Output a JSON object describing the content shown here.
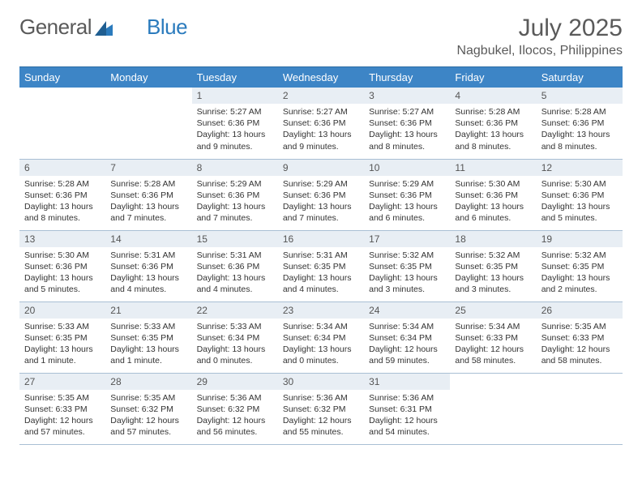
{
  "logo": {
    "text1": "General",
    "text2": "Blue"
  },
  "title": "July 2025",
  "location": "Nagbukel, Ilocos, Philippines",
  "colors": {
    "header_bg": "#3d85c6",
    "header_text": "#ffffff",
    "daynum_bg": "#e8eef4",
    "border": "#a9bfd4",
    "text": "#333333",
    "title_text": "#5a5a5a",
    "logo_blue": "#2b7bbd"
  },
  "typography": {
    "title_fontsize": 30,
    "location_fontsize": 16,
    "header_fontsize": 13,
    "daynum_fontsize": 12,
    "body_fontsize": 10.5
  },
  "weekdays": [
    "Sunday",
    "Monday",
    "Tuesday",
    "Wednesday",
    "Thursday",
    "Friday",
    "Saturday"
  ],
  "weeks": [
    [
      null,
      null,
      {
        "n": "1",
        "sr": "5:27 AM",
        "ss": "6:36 PM",
        "dl": "13 hours and 9 minutes."
      },
      {
        "n": "2",
        "sr": "5:27 AM",
        "ss": "6:36 PM",
        "dl": "13 hours and 9 minutes."
      },
      {
        "n": "3",
        "sr": "5:27 AM",
        "ss": "6:36 PM",
        "dl": "13 hours and 8 minutes."
      },
      {
        "n": "4",
        "sr": "5:28 AM",
        "ss": "6:36 PM",
        "dl": "13 hours and 8 minutes."
      },
      {
        "n": "5",
        "sr": "5:28 AM",
        "ss": "6:36 PM",
        "dl": "13 hours and 8 minutes."
      }
    ],
    [
      {
        "n": "6",
        "sr": "5:28 AM",
        "ss": "6:36 PM",
        "dl": "13 hours and 8 minutes."
      },
      {
        "n": "7",
        "sr": "5:28 AM",
        "ss": "6:36 PM",
        "dl": "13 hours and 7 minutes."
      },
      {
        "n": "8",
        "sr": "5:29 AM",
        "ss": "6:36 PM",
        "dl": "13 hours and 7 minutes."
      },
      {
        "n": "9",
        "sr": "5:29 AM",
        "ss": "6:36 PM",
        "dl": "13 hours and 7 minutes."
      },
      {
        "n": "10",
        "sr": "5:29 AM",
        "ss": "6:36 PM",
        "dl": "13 hours and 6 minutes."
      },
      {
        "n": "11",
        "sr": "5:30 AM",
        "ss": "6:36 PM",
        "dl": "13 hours and 6 minutes."
      },
      {
        "n": "12",
        "sr": "5:30 AM",
        "ss": "6:36 PM",
        "dl": "13 hours and 5 minutes."
      }
    ],
    [
      {
        "n": "13",
        "sr": "5:30 AM",
        "ss": "6:36 PM",
        "dl": "13 hours and 5 minutes."
      },
      {
        "n": "14",
        "sr": "5:31 AM",
        "ss": "6:36 PM",
        "dl": "13 hours and 4 minutes."
      },
      {
        "n": "15",
        "sr": "5:31 AM",
        "ss": "6:36 PM",
        "dl": "13 hours and 4 minutes."
      },
      {
        "n": "16",
        "sr": "5:31 AM",
        "ss": "6:35 PM",
        "dl": "13 hours and 4 minutes."
      },
      {
        "n": "17",
        "sr": "5:32 AM",
        "ss": "6:35 PM",
        "dl": "13 hours and 3 minutes."
      },
      {
        "n": "18",
        "sr": "5:32 AM",
        "ss": "6:35 PM",
        "dl": "13 hours and 3 minutes."
      },
      {
        "n": "19",
        "sr": "5:32 AM",
        "ss": "6:35 PM",
        "dl": "13 hours and 2 minutes."
      }
    ],
    [
      {
        "n": "20",
        "sr": "5:33 AM",
        "ss": "6:35 PM",
        "dl": "13 hours and 1 minute."
      },
      {
        "n": "21",
        "sr": "5:33 AM",
        "ss": "6:35 PM",
        "dl": "13 hours and 1 minute."
      },
      {
        "n": "22",
        "sr": "5:33 AM",
        "ss": "6:34 PM",
        "dl": "13 hours and 0 minutes."
      },
      {
        "n": "23",
        "sr": "5:34 AM",
        "ss": "6:34 PM",
        "dl": "13 hours and 0 minutes."
      },
      {
        "n": "24",
        "sr": "5:34 AM",
        "ss": "6:34 PM",
        "dl": "12 hours and 59 minutes."
      },
      {
        "n": "25",
        "sr": "5:34 AM",
        "ss": "6:33 PM",
        "dl": "12 hours and 58 minutes."
      },
      {
        "n": "26",
        "sr": "5:35 AM",
        "ss": "6:33 PM",
        "dl": "12 hours and 58 minutes."
      }
    ],
    [
      {
        "n": "27",
        "sr": "5:35 AM",
        "ss": "6:33 PM",
        "dl": "12 hours and 57 minutes."
      },
      {
        "n": "28",
        "sr": "5:35 AM",
        "ss": "6:32 PM",
        "dl": "12 hours and 57 minutes."
      },
      {
        "n": "29",
        "sr": "5:36 AM",
        "ss": "6:32 PM",
        "dl": "12 hours and 56 minutes."
      },
      {
        "n": "30",
        "sr": "5:36 AM",
        "ss": "6:32 PM",
        "dl": "12 hours and 55 minutes."
      },
      {
        "n": "31",
        "sr": "5:36 AM",
        "ss": "6:31 PM",
        "dl": "12 hours and 54 minutes."
      },
      null,
      null
    ]
  ],
  "labels": {
    "sunrise": "Sunrise:",
    "sunset": "Sunset:",
    "daylight": "Daylight:"
  }
}
